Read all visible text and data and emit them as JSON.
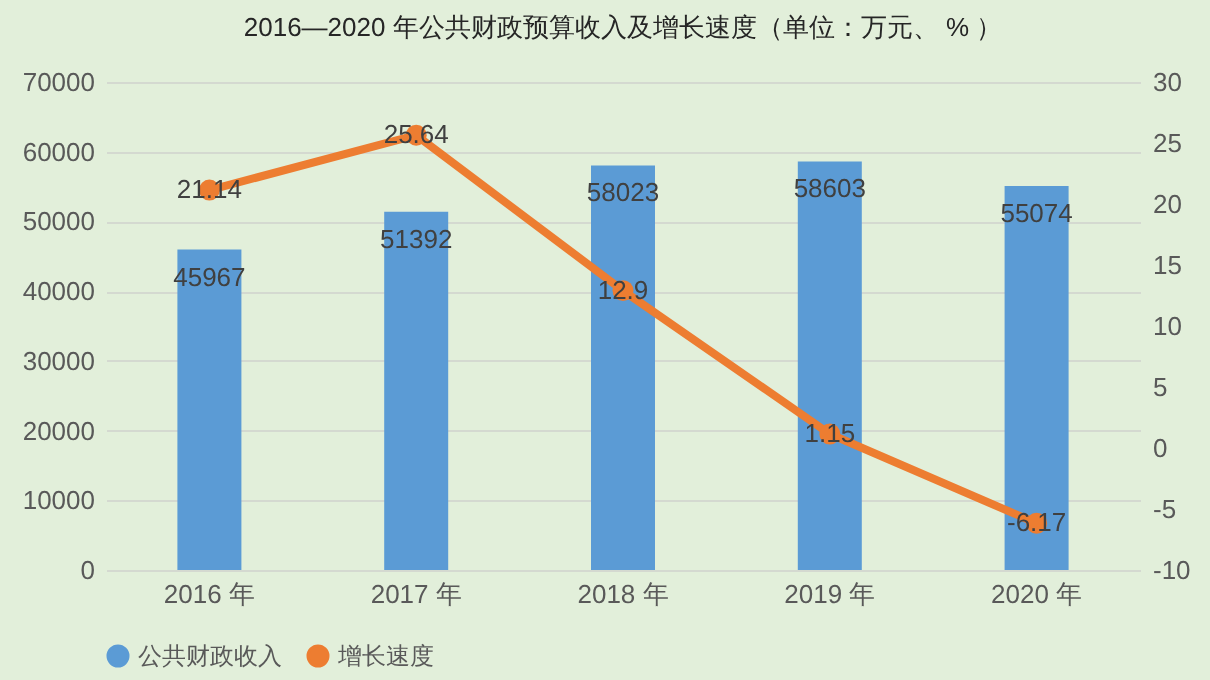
{
  "chart_data": {
    "type": "bar",
    "title": "2016—2020 年公共财政预算收入及增长速度（单位：万元、 % ）",
    "categories": [
      "2016 年",
      "2017 年",
      "2018 年",
      "2019 年",
      "2020 年"
    ],
    "series": [
      {
        "name": "公共财政收入",
        "color": "#5b9bd5",
        "values": [
          45967,
          51392,
          58023,
          58603,
          55074
        ]
      },
      {
        "name": "增长速度",
        "type": "line",
        "axis": "y2",
        "color": "#ed7d31",
        "values": [
          21.14,
          25.64,
          12.9,
          1.15,
          -6.17
        ]
      }
    ],
    "ylim": [
      0,
      70000
    ],
    "yticks": [
      0,
      10000,
      20000,
      30000,
      40000,
      50000,
      60000,
      70000
    ],
    "y2lim": [
      -10,
      30
    ],
    "y2ticks": [
      -10,
      -5,
      0,
      5,
      10,
      15,
      20,
      25,
      30
    ],
    "data_labels": true,
    "grid": "y",
    "legend": "bottom",
    "marker": "circle",
    "line_style": "solid"
  }
}
